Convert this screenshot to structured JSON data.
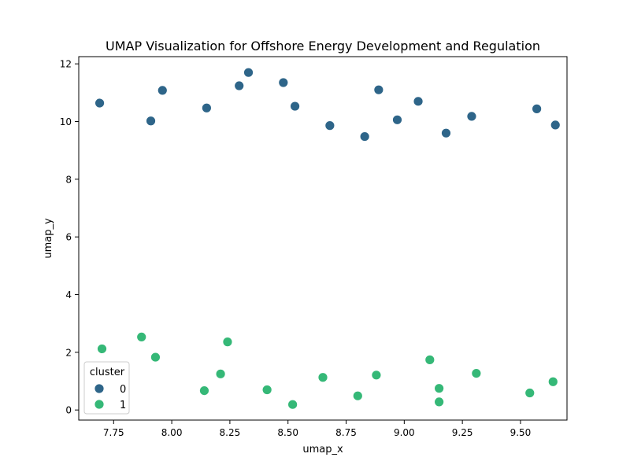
{
  "chart_data": {
    "type": "scatter",
    "title": "UMAP Visualization for Offshore Energy Development and Regulation",
    "xlabel": "umap_x",
    "ylabel": "umap_y",
    "xlim": [
      7.6,
      9.7
    ],
    "ylim": [
      -0.35,
      12.25
    ],
    "xticks": [
      7.75,
      8.0,
      8.25,
      8.5,
      8.75,
      9.0,
      9.25,
      9.5
    ],
    "xtick_labels": [
      "7.75",
      "8.00",
      "8.25",
      "8.50",
      "8.75",
      "9.00",
      "9.25",
      "9.50"
    ],
    "yticks": [
      0,
      2,
      4,
      6,
      8,
      10,
      12
    ],
    "ytick_labels": [
      "0",
      "2",
      "4",
      "6",
      "8",
      "10",
      "12"
    ],
    "grid": false,
    "legend": {
      "title": "cluster",
      "position": "lower-left",
      "entries": [
        {
          "label": "0",
          "color": "#2e6589"
        },
        {
          "label": "1",
          "color": "#35b877"
        }
      ]
    },
    "series": [
      {
        "name": "0",
        "color": "#2e6589",
        "x": [
          7.69,
          7.91,
          7.96,
          8.15,
          8.29,
          8.33,
          8.48,
          8.53,
          8.68,
          8.83,
          8.89,
          8.97,
          9.06,
          9.18,
          9.29,
          9.57,
          9.65
        ],
        "y": [
          10.64,
          10.02,
          11.08,
          10.47,
          11.24,
          11.7,
          11.35,
          10.53,
          9.86,
          9.48,
          11.1,
          10.06,
          10.7,
          9.6,
          10.18,
          10.44,
          9.88
        ]
      },
      {
        "name": "1",
        "color": "#35b877",
        "x": [
          7.7,
          7.87,
          7.93,
          8.14,
          8.21,
          8.24,
          8.41,
          8.52,
          8.65,
          8.8,
          8.88,
          9.11,
          9.15,
          9.15,
          9.31,
          9.54,
          9.64
        ],
        "y": [
          2.12,
          2.53,
          1.83,
          0.67,
          1.25,
          2.36,
          0.7,
          0.19,
          1.13,
          0.49,
          1.21,
          1.74,
          0.75,
          0.28,
          1.27,
          0.59,
          0.98
        ]
      }
    ]
  }
}
